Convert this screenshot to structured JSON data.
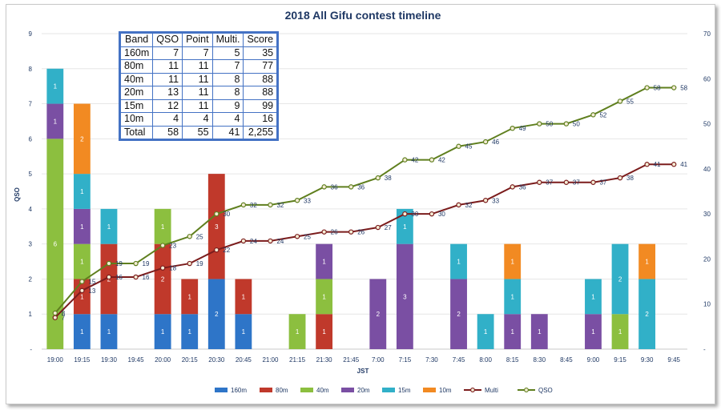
{
  "chart_data": {
    "type": "bar",
    "title": "2018 All Gifu contest timeline",
    "xlabel": "JST",
    "ylabel": "QSO",
    "ylim": [
      0,
      9
    ],
    "y2lim": [
      0,
      70
    ],
    "y_ticks": [
      "-",
      "1",
      "2",
      "3",
      "4",
      "5",
      "6",
      "7",
      "8",
      "9"
    ],
    "y2_ticks": [
      "-",
      "10",
      "20",
      "30",
      "40",
      "50",
      "60",
      "70"
    ],
    "categories": [
      "19:00",
      "19:15",
      "19:30",
      "19:45",
      "20:00",
      "20:15",
      "20:30",
      "20:45",
      "21:00",
      "21:15",
      "21:30",
      "21:45",
      "7:00",
      "7:15",
      "7:30",
      "7:45",
      "8:00",
      "8:15",
      "8:30",
      "8:45",
      "9:00",
      "9:15",
      "9:30",
      "9:45"
    ],
    "series": [
      {
        "name": "160m",
        "kind": "bar",
        "color": "#2e75c8",
        "values": [
          0,
          1,
          1,
          0,
          1,
          1,
          2,
          1,
          0,
          0,
          0,
          0,
          0,
          0,
          0,
          0,
          0,
          0,
          0,
          0,
          0,
          0,
          0,
          0
        ]
      },
      {
        "name": "80m",
        "kind": "bar",
        "color": "#c0392b",
        "values": [
          0,
          1,
          2,
          0,
          2,
          1,
          3,
          1,
          0,
          0,
          1,
          0,
          0,
          0,
          0,
          0,
          0,
          0,
          0,
          0,
          0,
          0,
          0,
          0
        ]
      },
      {
        "name": "40m",
        "kind": "bar",
        "color": "#8cbf3f",
        "values": [
          6,
          1,
          0,
          0,
          1,
          0,
          0,
          0,
          0,
          1,
          1,
          0,
          0,
          0,
          0,
          0,
          0,
          0,
          0,
          0,
          0,
          1,
          0,
          0
        ]
      },
      {
        "name": "20m",
        "kind": "bar",
        "color": "#7a4fa3",
        "values": [
          1,
          1,
          0,
          0,
          0,
          0,
          0,
          0,
          0,
          0,
          1,
          0,
          2,
          3,
          0,
          2,
          0,
          1,
          1,
          0,
          1,
          0,
          0,
          0
        ]
      },
      {
        "name": "15m",
        "kind": "bar",
        "color": "#31b0c8",
        "values": [
          1,
          1,
          1,
          0,
          0,
          0,
          0,
          0,
          0,
          0,
          0,
          0,
          0,
          1,
          0,
          1,
          1,
          1,
          0,
          0,
          1,
          2,
          2,
          0
        ]
      },
      {
        "name": "10m",
        "kind": "bar",
        "color": "#f28a22",
        "values": [
          0,
          2,
          0,
          0,
          0,
          0,
          0,
          0,
          0,
          0,
          0,
          0,
          0,
          0,
          0,
          0,
          0,
          1,
          0,
          0,
          0,
          0,
          1,
          0
        ]
      },
      {
        "name": "Multi",
        "kind": "line",
        "axis": "right",
        "color": "#7b1c1c",
        "values": [
          7,
          13,
          16,
          16,
          18,
          19,
          22,
          24,
          24,
          25,
          26,
          26,
          27,
          30,
          30,
          32,
          33,
          36,
          37,
          37,
          37,
          38,
          41,
          41
        ]
      },
      {
        "name": "QSO",
        "kind": "line",
        "axis": "right",
        "color": "#5f7f1e",
        "values": [
          8,
          15,
          19,
          19,
          23,
          25,
          30,
          32,
          32,
          33,
          36,
          36,
          38,
          42,
          42,
          45,
          46,
          49,
          50,
          50,
          52,
          55,
          58,
          58
        ]
      }
    ],
    "summary_table": {
      "headers": [
        "Band",
        "QSO",
        "Point",
        "Multi.",
        "Score"
      ],
      "rows": [
        [
          "160m",
          "7",
          "7",
          "5",
          "35"
        ],
        [
          "80m",
          "11",
          "11",
          "7",
          "77"
        ],
        [
          "40m",
          "11",
          "11",
          "8",
          "88"
        ],
        [
          "20m",
          "13",
          "11",
          "8",
          "88"
        ],
        [
          "15m",
          "12",
          "11",
          "9",
          "99"
        ],
        [
          "10m",
          "4",
          "4",
          "4",
          "16"
        ],
        [
          "Total",
          "58",
          "55",
          "41",
          "2,255"
        ]
      ]
    }
  }
}
